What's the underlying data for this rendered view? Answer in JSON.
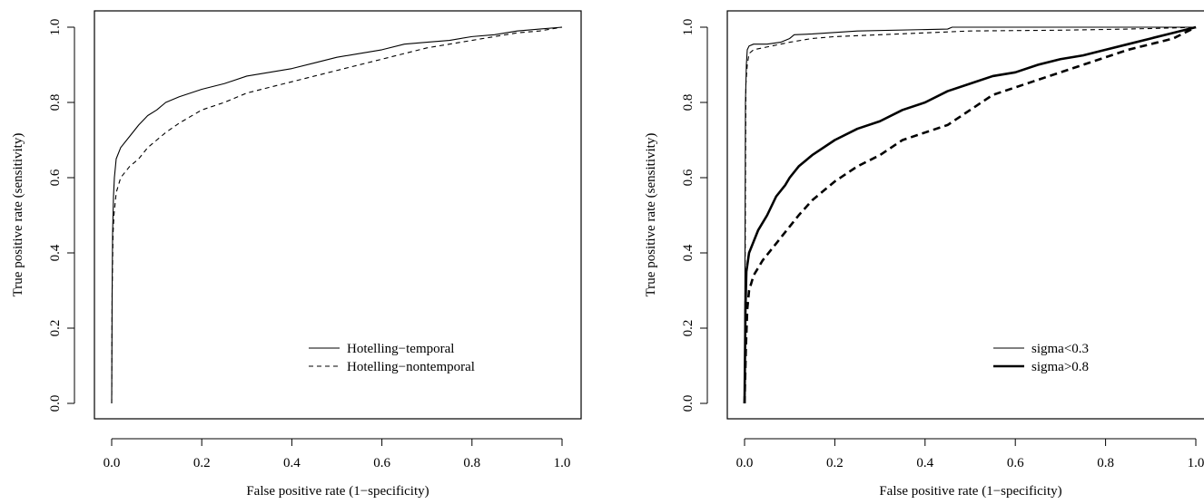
{
  "chart_data": [
    {
      "type": "line",
      "xlabel": "False positive rate (1−specificity)",
      "ylabel": "True positive rate (sensitivity)",
      "xlim": [
        0,
        1
      ],
      "ylim": [
        0,
        1
      ],
      "x_ticks": [
        "0.0",
        "0.2",
        "0.4",
        "0.6",
        "0.8",
        "1.0"
      ],
      "y_ticks": [
        "0.0",
        "0.2",
        "0.4",
        "0.6",
        "0.8",
        "1.0"
      ],
      "grid": false,
      "legend_position": "bottom-right",
      "series": [
        {
          "name": "Hotelling−temporal",
          "line_style": "solid",
          "line_weight": "thin",
          "color": "#000000",
          "points": [
            [
              0,
              0
            ],
            [
              0.001,
              0.3
            ],
            [
              0.002,
              0.45
            ],
            [
              0.004,
              0.55
            ],
            [
              0.006,
              0.6
            ],
            [
              0.01,
              0.65
            ],
            [
              0.02,
              0.68
            ],
            [
              0.04,
              0.71
            ],
            [
              0.06,
              0.74
            ],
            [
              0.08,
              0.765
            ],
            [
              0.1,
              0.78
            ],
            [
              0.12,
              0.8
            ],
            [
              0.15,
              0.815
            ],
            [
              0.2,
              0.835
            ],
            [
              0.25,
              0.85
            ],
            [
              0.3,
              0.87
            ],
            [
              0.35,
              0.88
            ],
            [
              0.4,
              0.89
            ],
            [
              0.45,
              0.905
            ],
            [
              0.5,
              0.92
            ],
            [
              0.55,
              0.93
            ],
            [
              0.6,
              0.94
            ],
            [
              0.65,
              0.955
            ],
            [
              0.7,
              0.96
            ],
            [
              0.75,
              0.965
            ],
            [
              0.8,
              0.975
            ],
            [
              0.85,
              0.98
            ],
            [
              0.9,
              0.99
            ],
            [
              0.95,
              0.995
            ],
            [
              1.0,
              1.0
            ]
          ]
        },
        {
          "name": "Hotelling−nontemporal",
          "line_style": "dashed",
          "line_weight": "thin",
          "color": "#000000",
          "points": [
            [
              0,
              0
            ],
            [
              0.001,
              0.3
            ],
            [
              0.003,
              0.45
            ],
            [
              0.005,
              0.5
            ],
            [
              0.01,
              0.56
            ],
            [
              0.02,
              0.6
            ],
            [
              0.04,
              0.63
            ],
            [
              0.06,
              0.65
            ],
            [
              0.08,
              0.68
            ],
            [
              0.1,
              0.7
            ],
            [
              0.12,
              0.72
            ],
            [
              0.15,
              0.745
            ],
            [
              0.2,
              0.78
            ],
            [
              0.25,
              0.8
            ],
            [
              0.3,
              0.825
            ],
            [
              0.35,
              0.84
            ],
            [
              0.4,
              0.855
            ],
            [
              0.45,
              0.87
            ],
            [
              0.5,
              0.885
            ],
            [
              0.55,
              0.9
            ],
            [
              0.6,
              0.915
            ],
            [
              0.65,
              0.93
            ],
            [
              0.7,
              0.945
            ],
            [
              0.75,
              0.955
            ],
            [
              0.8,
              0.965
            ],
            [
              0.85,
              0.975
            ],
            [
              0.9,
              0.985
            ],
            [
              0.95,
              0.99
            ],
            [
              1.0,
              1.0
            ]
          ]
        }
      ]
    },
    {
      "type": "line",
      "xlabel": "False positive rate (1−specificity)",
      "ylabel": "True positive rate (sensitivity)",
      "xlim": [
        0,
        1
      ],
      "ylim": [
        0,
        1
      ],
      "x_ticks": [
        "0.0",
        "0.2",
        "0.4",
        "0.6",
        "0.8",
        "1.0"
      ],
      "y_ticks": [
        "0.0",
        "0.2",
        "0.4",
        "0.6",
        "0.8",
        "1.0"
      ],
      "grid": false,
      "legend_position": "bottom-right",
      "series": [
        {
          "name": "sigma<0.3",
          "line_style": "solid",
          "line_weight": "thin",
          "color": "#000000",
          "points": [
            [
              0,
              0
            ],
            [
              0.002,
              0.8
            ],
            [
              0.004,
              0.9
            ],
            [
              0.006,
              0.94
            ],
            [
              0.01,
              0.95
            ],
            [
              0.02,
              0.955
            ],
            [
              0.05,
              0.955
            ],
            [
              0.08,
              0.96
            ],
            [
              0.1,
              0.97
            ],
            [
              0.11,
              0.98
            ],
            [
              0.15,
              0.982
            ],
            [
              0.25,
              0.99
            ],
            [
              0.45,
              0.995
            ],
            [
              0.46,
              1.0
            ],
            [
              1.0,
              1.0
            ]
          ]
        },
        {
          "name": "",
          "line_style": "dashed",
          "line_weight": "thin",
          "color": "#000000",
          "points": [
            [
              0,
              0
            ],
            [
              0.003,
              0.85
            ],
            [
              0.006,
              0.9
            ],
            [
              0.01,
              0.93
            ],
            [
              0.02,
              0.94
            ],
            [
              0.04,
              0.945
            ],
            [
              0.06,
              0.95
            ],
            [
              0.08,
              0.955
            ],
            [
              0.1,
              0.96
            ],
            [
              0.15,
              0.97
            ],
            [
              0.2,
              0.975
            ],
            [
              0.3,
              0.98
            ],
            [
              0.4,
              0.985
            ],
            [
              0.5,
              0.99
            ],
            [
              0.7,
              0.992
            ],
            [
              0.85,
              0.995
            ],
            [
              0.95,
              0.998
            ],
            [
              1.0,
              1.0
            ]
          ]
        },
        {
          "name": "sigma>0.8",
          "line_style": "solid",
          "line_weight": "thick",
          "color": "#000000",
          "points": [
            [
              0,
              0
            ],
            [
              0.002,
              0.25
            ],
            [
              0.004,
              0.35
            ],
            [
              0.01,
              0.4
            ],
            [
              0.02,
              0.43
            ],
            [
              0.03,
              0.46
            ],
            [
              0.05,
              0.5
            ],
            [
              0.07,
              0.55
            ],
            [
              0.09,
              0.58
            ],
            [
              0.1,
              0.6
            ],
            [
              0.12,
              0.63
            ],
            [
              0.15,
              0.66
            ],
            [
              0.2,
              0.7
            ],
            [
              0.25,
              0.73
            ],
            [
              0.3,
              0.75
            ],
            [
              0.35,
              0.78
            ],
            [
              0.4,
              0.8
            ],
            [
              0.45,
              0.83
            ],
            [
              0.5,
              0.85
            ],
            [
              0.55,
              0.87
            ],
            [
              0.6,
              0.88
            ],
            [
              0.65,
              0.9
            ],
            [
              0.7,
              0.915
            ],
            [
              0.75,
              0.925
            ],
            [
              0.8,
              0.94
            ],
            [
              0.85,
              0.955
            ],
            [
              0.9,
              0.97
            ],
            [
              0.95,
              0.985
            ],
            [
              1.0,
              1.0
            ]
          ]
        },
        {
          "name": "",
          "line_style": "dashed",
          "line_weight": "thick",
          "color": "#000000",
          "points": [
            [
              0,
              0
            ],
            [
              0.003,
              0.15
            ],
            [
              0.006,
              0.25
            ],
            [
              0.01,
              0.3
            ],
            [
              0.02,
              0.34
            ],
            [
              0.04,
              0.38
            ],
            [
              0.06,
              0.41
            ],
            [
              0.08,
              0.44
            ],
            [
              0.1,
              0.47
            ],
            [
              0.12,
              0.5
            ],
            [
              0.15,
              0.54
            ],
            [
              0.2,
              0.59
            ],
            [
              0.25,
              0.63
            ],
            [
              0.3,
              0.66
            ],
            [
              0.35,
              0.7
            ],
            [
              0.4,
              0.72
            ],
            [
              0.45,
              0.74
            ],
            [
              0.5,
              0.78
            ],
            [
              0.55,
              0.82
            ],
            [
              0.6,
              0.84
            ],
            [
              0.65,
              0.86
            ],
            [
              0.7,
              0.88
            ],
            [
              0.75,
              0.9
            ],
            [
              0.8,
              0.92
            ],
            [
              0.85,
              0.94
            ],
            [
              0.9,
              0.955
            ],
            [
              0.95,
              0.97
            ],
            [
              1.0,
              1.0
            ]
          ]
        }
      ]
    }
  ]
}
